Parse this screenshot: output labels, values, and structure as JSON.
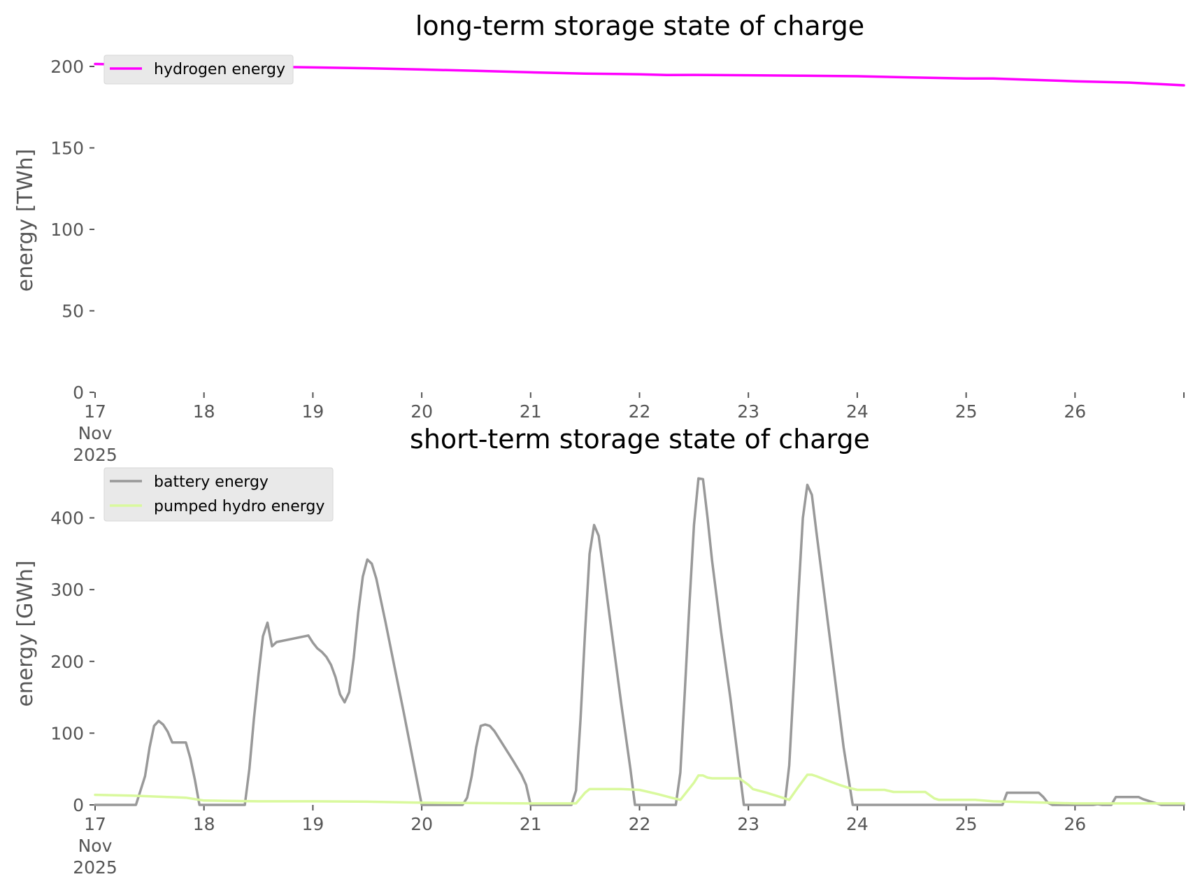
{
  "chart_data": [
    {
      "type": "line",
      "title": "long-term storage state of charge",
      "ylabel": "energy [TWh]",
      "xlabel": "",
      "ylim": [
        0,
        200
      ],
      "yticks": [
        0,
        50,
        100,
        150,
        200
      ],
      "x_domain": [
        "2025-11-17",
        "2025-11-27"
      ],
      "x_tick_dates": [
        "2025-11-17",
        "2025-11-18",
        "2025-11-19",
        "2025-11-20",
        "2025-11-21",
        "2025-11-22",
        "2025-11-23",
        "2025-11-24",
        "2025-11-25",
        "2025-11-26",
        "2025-11-27"
      ],
      "x_tick_labels": [
        [
          "17",
          "Nov",
          "2025"
        ],
        [
          "18"
        ],
        [
          "19"
        ],
        [
          "20"
        ],
        [
          "21"
        ],
        [
          "22"
        ],
        [
          "23"
        ],
        [
          "24"
        ],
        [
          "25"
        ],
        [
          "26"
        ],
        [
          ""
        ]
      ],
      "grid": false,
      "legend_position": "top-left",
      "series": [
        {
          "name": "hydrogen energy",
          "color": "#ff00ff",
          "points": [
            [
              "2025-11-17 00:00",
              201.5
            ],
            [
              "2025-11-17 12:00",
              200.9
            ],
            [
              "2025-11-18 00:00",
              200.3
            ],
            [
              "2025-11-18 12:00",
              199.9
            ],
            [
              "2025-11-19 00:00",
              199.4
            ],
            [
              "2025-11-19 12:00",
              198.9
            ],
            [
              "2025-11-20 00:00",
              198.1
            ],
            [
              "2025-11-20 12:00",
              197.3
            ],
            [
              "2025-11-21 00:00",
              196.4
            ],
            [
              "2025-11-21 12:00",
              195.6
            ],
            [
              "2025-11-22 00:00",
              195.2
            ],
            [
              "2025-11-22 06:00",
              194.7
            ],
            [
              "2025-11-22 12:00",
              194.8
            ],
            [
              "2025-11-23 00:00",
              194.6
            ],
            [
              "2025-11-23 12:00",
              194.3
            ],
            [
              "2025-11-24 00:00",
              194.0
            ],
            [
              "2025-11-24 12:00",
              193.2
            ],
            [
              "2025-11-25 00:00",
              192.6
            ],
            [
              "2025-11-25 06:00",
              192.6
            ],
            [
              "2025-11-25 12:00",
              192.0
            ],
            [
              "2025-11-26 00:00",
              190.9
            ],
            [
              "2025-11-26 12:00",
              190.1
            ],
            [
              "2025-11-27 00:00",
              188.4
            ]
          ]
        }
      ]
    },
    {
      "type": "line",
      "title": "short-term storage state of charge",
      "ylabel": "energy [GWh]",
      "xlabel": "",
      "ylim": [
        0,
        460
      ],
      "yticks": [
        0,
        100,
        200,
        300,
        400
      ],
      "x_domain": [
        "2025-11-17",
        "2025-11-27"
      ],
      "x_tick_dates": [
        "2025-11-17",
        "2025-11-18",
        "2025-11-19",
        "2025-11-20",
        "2025-11-21",
        "2025-11-22",
        "2025-11-23",
        "2025-11-24",
        "2025-11-25",
        "2025-11-26",
        "2025-11-27"
      ],
      "x_tick_labels": [
        [
          "17",
          "Nov",
          "2025"
        ],
        [
          "18"
        ],
        [
          "19"
        ],
        [
          "20"
        ],
        [
          "21"
        ],
        [
          "22"
        ],
        [
          "23"
        ],
        [
          "24"
        ],
        [
          "25"
        ],
        [
          "26"
        ],
        [
          ""
        ]
      ],
      "grid": false,
      "legend_position": "top-left",
      "series": [
        {
          "name": "battery energy",
          "color": "#999999",
          "points": [
            [
              "2025-11-17 00:00",
              0
            ],
            [
              "2025-11-17 09:00",
              0
            ],
            [
              "2025-11-17 11:00",
              40
            ],
            [
              "2025-11-17 12:00",
              80
            ],
            [
              "2025-11-17 13:00",
              110
            ],
            [
              "2025-11-17 14:00",
              117
            ],
            [
              "2025-11-17 15:00",
              112
            ],
            [
              "2025-11-17 16:00",
              102
            ],
            [
              "2025-11-17 17:00",
              87
            ],
            [
              "2025-11-17 19:00",
              87
            ],
            [
              "2025-11-17 20:00",
              87
            ],
            [
              "2025-11-17 21:00",
              65
            ],
            [
              "2025-11-17 22:00",
              35
            ],
            [
              "2025-11-17 23:00",
              0
            ],
            [
              "2025-11-18 09:00",
              0
            ],
            [
              "2025-11-18 10:00",
              50
            ],
            [
              "2025-11-18 11:00",
              120
            ],
            [
              "2025-11-18 12:00",
              180
            ],
            [
              "2025-11-18 13:00",
              235
            ],
            [
              "2025-11-18 14:00",
              254
            ],
            [
              "2025-11-18 15:00",
              221
            ],
            [
              "2025-11-18 16:00",
              227
            ],
            [
              "2025-11-18 23:00",
              236
            ],
            [
              "2025-11-19 00:00",
              226
            ],
            [
              "2025-11-19 01:00",
              218
            ],
            [
              "2025-11-19 02:00",
              213
            ],
            [
              "2025-11-19 03:00",
              206
            ],
            [
              "2025-11-19 04:00",
              195
            ],
            [
              "2025-11-19 05:00",
              178
            ],
            [
              "2025-11-19 06:00",
              154
            ],
            [
              "2025-11-19 07:00",
              143
            ],
            [
              "2025-11-19 08:00",
              157
            ],
            [
              "2025-11-19 09:00",
              205
            ],
            [
              "2025-11-19 10:00",
              268
            ],
            [
              "2025-11-19 11:00",
              318
            ],
            [
              "2025-11-19 12:00",
              342
            ],
            [
              "2025-11-19 13:00",
              336
            ],
            [
              "2025-11-19 14:00",
              315
            ],
            [
              "2025-11-19 16:00",
              255
            ],
            [
              "2025-11-19 18:00",
              192
            ],
            [
              "2025-11-19 20:00",
              130
            ],
            [
              "2025-11-19 22:00",
              65
            ],
            [
              "2025-11-20 00:00",
              0
            ],
            [
              "2025-11-20 09:00",
              0
            ],
            [
              "2025-11-20 10:00",
              10
            ],
            [
              "2025-11-20 11:00",
              40
            ],
            [
              "2025-11-20 12:00",
              80
            ],
            [
              "2025-11-20 13:00",
              110
            ],
            [
              "2025-11-20 14:00",
              112
            ],
            [
              "2025-11-20 15:00",
              110
            ],
            [
              "2025-11-20 16:00",
              103
            ],
            [
              "2025-11-20 18:00",
              83
            ],
            [
              "2025-11-20 20:00",
              63
            ],
            [
              "2025-11-20 22:00",
              42
            ],
            [
              "2025-11-20 23:00",
              28
            ],
            [
              "2025-11-21 00:00",
              0
            ],
            [
              "2025-11-21 09:00",
              0
            ],
            [
              "2025-11-21 10:00",
              20
            ],
            [
              "2025-11-21 11:00",
              120
            ],
            [
              "2025-11-21 12:00",
              240
            ],
            [
              "2025-11-21 13:00",
              350
            ],
            [
              "2025-11-21 14:00",
              390
            ],
            [
              "2025-11-21 15:00",
              375
            ],
            [
              "2025-11-21 16:00",
              330
            ],
            [
              "2025-11-21 18:00",
              235
            ],
            [
              "2025-11-21 20:00",
              140
            ],
            [
              "2025-11-21 22:00",
              50
            ],
            [
              "2025-11-21 23:00",
              0
            ],
            [
              "2025-11-22 08:00",
              0
            ],
            [
              "2025-11-22 09:00",
              45
            ],
            [
              "2025-11-22 10:00",
              160
            ],
            [
              "2025-11-22 11:00",
              280
            ],
            [
              "2025-11-22 12:00",
              390
            ],
            [
              "2025-11-22 13:00",
              455
            ],
            [
              "2025-11-22 14:00",
              454
            ],
            [
              "2025-11-22 15:00",
              400
            ],
            [
              "2025-11-22 16:00",
              340
            ],
            [
              "2025-11-22 18:00",
              240
            ],
            [
              "2025-11-22 20:00",
              150
            ],
            [
              "2025-11-22 22:00",
              50
            ],
            [
              "2025-11-22 23:00",
              0
            ],
            [
              "2025-11-23 08:00",
              0
            ],
            [
              "2025-11-23 09:00",
              55
            ],
            [
              "2025-11-23 10:00",
              170
            ],
            [
              "2025-11-23 11:00",
              290
            ],
            [
              "2025-11-23 12:00",
              400
            ],
            [
              "2025-11-23 13:00",
              446
            ],
            [
              "2025-11-23 14:00",
              432
            ],
            [
              "2025-11-23 15:00",
              380
            ],
            [
              "2025-11-23 17:00",
              280
            ],
            [
              "2025-11-23 19:00",
              180
            ],
            [
              "2025-11-23 21:00",
              80
            ],
            [
              "2025-11-23 23:00",
              0
            ],
            [
              "2025-11-25 08:00",
              0
            ],
            [
              "2025-11-25 09:00",
              17
            ],
            [
              "2025-11-25 16:00",
              17
            ],
            [
              "2025-11-25 17:00",
              11
            ],
            [
              "2025-11-25 18:00",
              3
            ],
            [
              "2025-11-25 19:00",
              0
            ],
            [
              "2025-11-26 04:00",
              0
            ],
            [
              "2025-11-26 05:00",
              1
            ],
            [
              "2025-11-26 06:00",
              0
            ],
            [
              "2025-11-26 08:00",
              0
            ],
            [
              "2025-11-26 09:00",
              11
            ],
            [
              "2025-11-26 14:00",
              11
            ],
            [
              "2025-11-26 15:00",
              8
            ],
            [
              "2025-11-26 17:00",
              4
            ],
            [
              "2025-11-26 19:00",
              0
            ],
            [
              "2025-11-27 00:00",
              0
            ]
          ]
        },
        {
          "name": "pumped hydro energy",
          "color": "#d9f99d",
          "points": [
            [
              "2025-11-17 00:00",
              14
            ],
            [
              "2025-11-17 08:00",
              13
            ],
            [
              "2025-11-17 16:00",
              11
            ],
            [
              "2025-11-17 20:00",
              10
            ],
            [
              "2025-11-18 00:00",
              6
            ],
            [
              "2025-11-18 12:00",
              5
            ],
            [
              "2025-11-19 00:00",
              5
            ],
            [
              "2025-11-19 12:00",
              4.5
            ],
            [
              "2025-11-20 00:00",
              3
            ],
            [
              "2025-11-20 12:00",
              2.5
            ],
            [
              "2025-11-21 00:00",
              2
            ],
            [
              "2025-11-21 10:00",
              2
            ],
            [
              "2025-11-21 12:00",
              17
            ],
            [
              "2025-11-21 13:00",
              22
            ],
            [
              "2025-11-21 20:00",
              22
            ],
            [
              "2025-11-22 00:00",
              21
            ],
            [
              "2025-11-22 04:00",
              15
            ],
            [
              "2025-11-22 07:00",
              10
            ],
            [
              "2025-11-22 09:00",
              7
            ],
            [
              "2025-11-22 12:00",
              31
            ],
            [
              "2025-11-22 13:00",
              41
            ],
            [
              "2025-11-22 14:00",
              41
            ],
            [
              "2025-11-22 15:00",
              38
            ],
            [
              "2025-11-22 16:00",
              37
            ],
            [
              "2025-11-22 22:00",
              37
            ],
            [
              "2025-11-23 00:00",
              28
            ],
            [
              "2025-11-23 01:00",
              22
            ],
            [
              "2025-11-23 04:00",
              17
            ],
            [
              "2025-11-23 07:00",
              11
            ],
            [
              "2025-11-23 09:00",
              7
            ],
            [
              "2025-11-23 11:00",
              25
            ],
            [
              "2025-11-23 13:00",
              42
            ],
            [
              "2025-11-23 14:00",
              42
            ],
            [
              "2025-11-23 15:00",
              40
            ],
            [
              "2025-11-23 17:00",
              35
            ],
            [
              "2025-11-23 20:00",
              28
            ],
            [
              "2025-11-23 22:00",
              24
            ],
            [
              "2025-11-24 00:00",
              21
            ],
            [
              "2025-11-24 06:00",
              21
            ],
            [
              "2025-11-24 08:00",
              18
            ],
            [
              "2025-11-24 15:00",
              18
            ],
            [
              "2025-11-24 17:00",
              9
            ],
            [
              "2025-11-24 18:00",
              7
            ],
            [
              "2025-11-25 02:00",
              7
            ],
            [
              "2025-11-25 06:00",
              5
            ],
            [
              "2025-11-25 18:00",
              3
            ],
            [
              "2025-11-26 00:00",
              2
            ],
            [
              "2025-11-27 00:00",
              2
            ]
          ]
        }
      ]
    }
  ]
}
